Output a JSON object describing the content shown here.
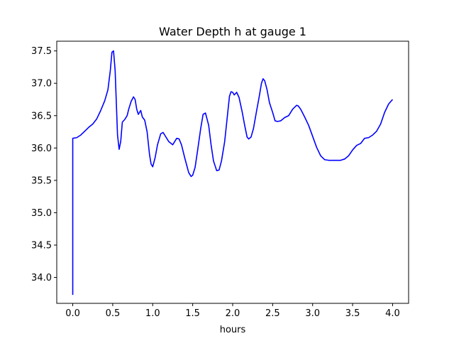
{
  "chart_data": {
    "type": "line",
    "title": "Water Depth h at gauge 1",
    "xlabel": "hours",
    "ylabel": "",
    "xlim": [
      -0.2,
      4.2
    ],
    "ylim": [
      33.6,
      37.65
    ],
    "xticks": [
      0.0,
      0.5,
      1.0,
      1.5,
      2.0,
      2.5,
      3.0,
      3.5,
      4.0
    ],
    "xtick_labels": [
      "0.0",
      "0.5",
      "1.0",
      "1.5",
      "2.0",
      "2.5",
      "3.0",
      "3.5",
      "4.0"
    ],
    "yticks": [
      34.0,
      34.5,
      35.0,
      35.5,
      36.0,
      36.5,
      37.0,
      37.5
    ],
    "ytick_labels": [
      "34.0",
      "34.5",
      "35.0",
      "35.5",
      "36.0",
      "36.5",
      "37.0",
      "37.5"
    ],
    "grid": false,
    "legend": "none",
    "series": [
      {
        "color": "#0000ff",
        "x": [
          0.0,
          0.0,
          0.05,
          0.1,
          0.15,
          0.2,
          0.25,
          0.3,
          0.35,
          0.4,
          0.44,
          0.47,
          0.49,
          0.51,
          0.53,
          0.56,
          0.58,
          0.6,
          0.62,
          0.65,
          0.68,
          0.7,
          0.73,
          0.76,
          0.78,
          0.8,
          0.82,
          0.85,
          0.87,
          0.9,
          0.93,
          0.96,
          0.98,
          1.0,
          1.03,
          1.06,
          1.1,
          1.13,
          1.15,
          1.2,
          1.25,
          1.3,
          1.33,
          1.36,
          1.4,
          1.45,
          1.48,
          1.5,
          1.53,
          1.56,
          1.6,
          1.63,
          1.66,
          1.7,
          1.73,
          1.76,
          1.8,
          1.83,
          1.86,
          1.9,
          1.93,
          1.96,
          1.98,
          2.0,
          2.02,
          2.05,
          2.08,
          2.12,
          2.15,
          2.18,
          2.2,
          2.23,
          2.26,
          2.3,
          2.33,
          2.36,
          2.38,
          2.4,
          2.43,
          2.46,
          2.5,
          2.53,
          2.56,
          2.6,
          2.65,
          2.7,
          2.75,
          2.8,
          2.82,
          2.85,
          2.9,
          2.95,
          3.0,
          3.05,
          3.1,
          3.15,
          3.2,
          3.25,
          3.3,
          3.35,
          3.4,
          3.45,
          3.5,
          3.55,
          3.6,
          3.65,
          3.7,
          3.75,
          3.8,
          3.85,
          3.9,
          3.95,
          4.0
        ],
        "y": [
          33.73,
          36.15,
          36.16,
          36.2,
          36.26,
          36.32,
          36.37,
          36.45,
          36.58,
          36.73,
          36.9,
          37.2,
          37.48,
          37.5,
          37.2,
          36.2,
          35.98,
          36.1,
          36.4,
          36.44,
          36.5,
          36.6,
          36.72,
          36.79,
          36.75,
          36.6,
          36.52,
          36.58,
          36.48,
          36.43,
          36.25,
          35.9,
          35.75,
          35.71,
          35.85,
          36.05,
          36.22,
          36.24,
          36.2,
          36.1,
          36.05,
          36.15,
          36.14,
          36.05,
          35.85,
          35.62,
          35.56,
          35.58,
          35.7,
          35.95,
          36.3,
          36.52,
          36.54,
          36.35,
          36.05,
          35.8,
          35.65,
          35.66,
          35.8,
          36.1,
          36.45,
          36.8,
          36.87,
          36.86,
          36.82,
          36.86,
          36.78,
          36.55,
          36.35,
          36.17,
          36.14,
          36.17,
          36.3,
          36.58,
          36.78,
          37.0,
          37.07,
          37.04,
          36.9,
          36.7,
          36.55,
          36.42,
          36.41,
          36.42,
          36.47,
          36.5,
          36.6,
          36.66,
          36.65,
          36.6,
          36.48,
          36.35,
          36.18,
          36.01,
          35.88,
          35.82,
          35.81,
          35.81,
          35.81,
          35.81,
          35.83,
          35.88,
          35.97,
          36.04,
          36.07,
          36.15,
          36.16,
          36.2,
          36.26,
          36.37,
          36.55,
          36.68,
          36.75
        ]
      }
    ]
  }
}
